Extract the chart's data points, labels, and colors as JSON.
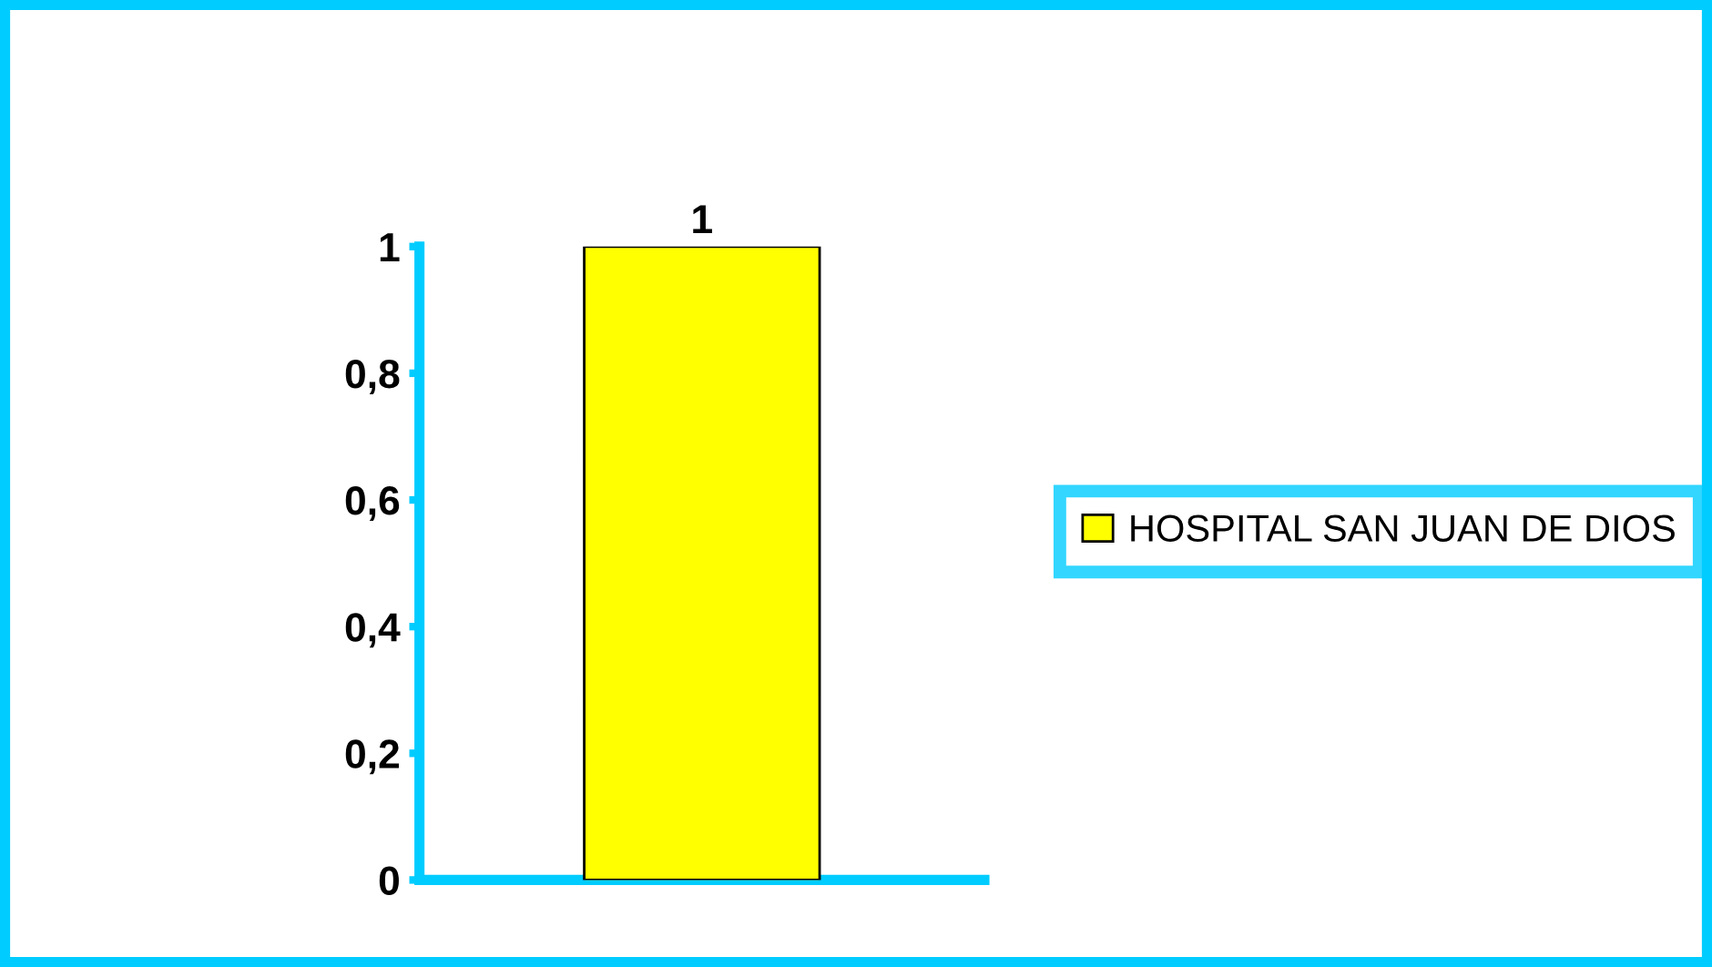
{
  "chart_data": {
    "type": "bar",
    "categories": [
      null
    ],
    "series": [
      {
        "name": "HOSPITAL SAN JUAN DE DIOS",
        "color": "#ffff00",
        "values": [
          1
        ]
      }
    ],
    "ylim": [
      0,
      1
    ],
    "yticks": [
      0,
      {
        "value": 0.2,
        "label": "0,2"
      },
      {
        "value": 0.4,
        "label": "0,4"
      },
      {
        "value": 0.6,
        "label": "0,6"
      },
      {
        "value": 0.8,
        "label": "0,8"
      },
      1
    ],
    "data_labels": true,
    "grid": false,
    "legend": "right"
  }
}
